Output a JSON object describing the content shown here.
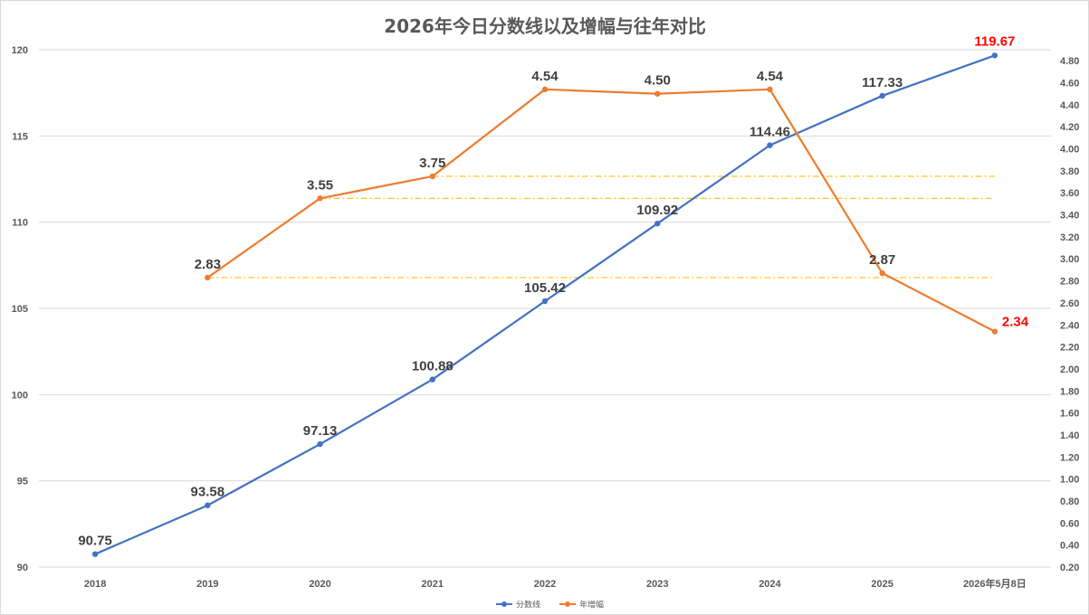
{
  "chart_data": {
    "type": "line",
    "title": "2026年今日分数线以及增幅与往年对比",
    "categories": [
      "2018",
      "2019",
      "2020",
      "2021",
      "2022",
      "2023",
      "2024",
      "2025",
      "2026年5月8日"
    ],
    "series": [
      {
        "name": "分数线",
        "axis": "left",
        "color": "#4472c4",
        "values": [
          90.75,
          93.58,
          97.13,
          100.88,
          105.42,
          109.92,
          114.46,
          117.33,
          119.67
        ],
        "labels": [
          "90.75",
          "93.58",
          "97.13",
          "100.88",
          "105.42",
          "109.92",
          "114.46",
          "117.33",
          "119.67"
        ]
      },
      {
        "name": "年增幅",
        "axis": "right",
        "color": "#ed7d31",
        "values": [
          null,
          2.83,
          3.55,
          3.75,
          4.54,
          4.5,
          4.54,
          2.87,
          2.34
        ],
        "labels": [
          null,
          "2.83",
          "3.55",
          "3.75",
          "4.54",
          "4.50",
          "4.54",
          "2.87",
          "2.34"
        ]
      }
    ],
    "highlight_label_color": "#ff0000",
    "highlighted_points": [
      "2026年5月8日"
    ],
    "y_left": {
      "range": [
        90,
        120
      ],
      "ticks": [
        "90",
        "95",
        "100",
        "105",
        "110",
        "115",
        "120"
      ]
    },
    "y_right": {
      "range": [
        0.2,
        4.9
      ],
      "ticks": [
        "0.20",
        "0.40",
        "0.60",
        "0.80",
        "1.00",
        "1.20",
        "1.40",
        "1.60",
        "1.80",
        "2.00",
        "2.20",
        "2.40",
        "2.60",
        "2.80",
        "3.00",
        "3.20",
        "3.40",
        "3.60",
        "3.80",
        "4.00",
        "4.20",
        "4.40",
        "4.60",
        "4.80"
      ]
    },
    "reference_lines": [
      {
        "axis": "right",
        "value": 3.75,
        "from": "2021",
        "to": "2026年5月8日",
        "color": "#ffc000",
        "style": "dash-dot"
      },
      {
        "axis": "right",
        "value": 3.55,
        "from": "2020",
        "to": "2026年5月8日",
        "color": "#ffc000",
        "style": "dash-dot"
      },
      {
        "axis": "right",
        "value": 2.83,
        "from": "2019",
        "to": "2026年5月8日",
        "color": "#ffc000",
        "style": "dash-dot"
      }
    ],
    "grid": "horizontal",
    "legend_position": "bottom"
  }
}
